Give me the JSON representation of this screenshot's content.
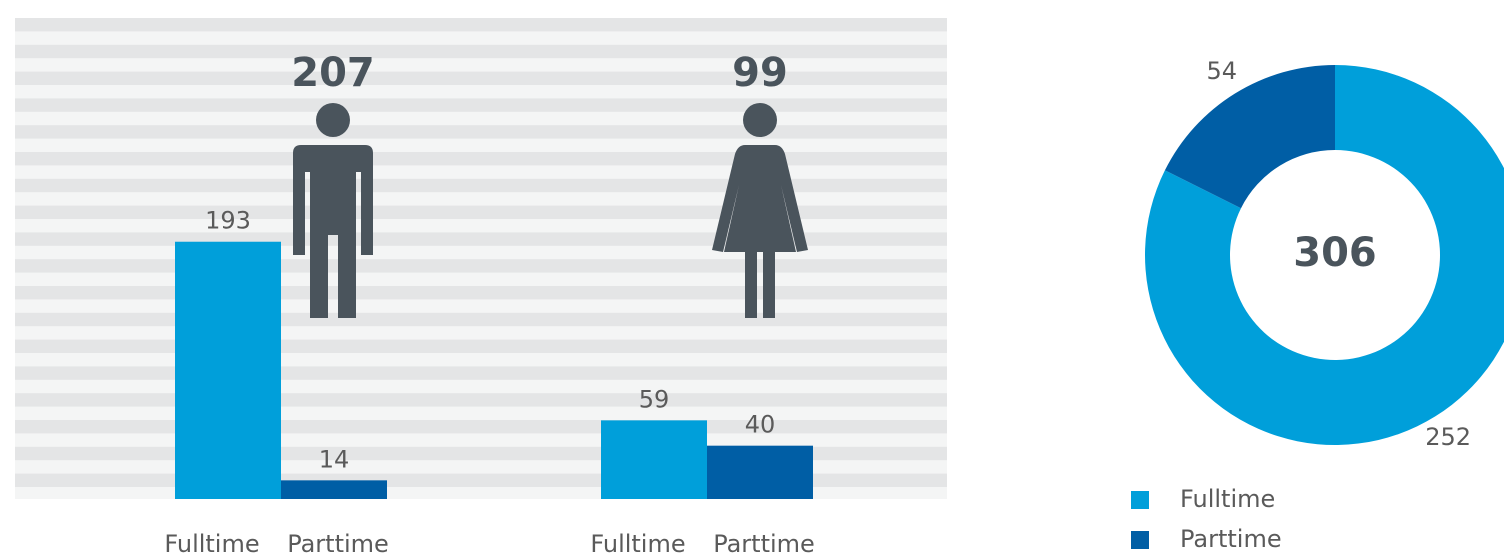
{
  "chart_data": [
    {
      "type": "bar",
      "categories": [
        "Fulltime",
        "Parttime"
      ],
      "colors": [
        "#009fda",
        "#005ea5"
      ],
      "groups": [
        {
          "total": 207,
          "values": [
            193,
            14
          ]
        },
        {
          "total": 99,
          "values": [
            59,
            40
          ]
        }
      ]
    },
    {
      "type": "pie",
      "total": 306,
      "categories": [
        "Fulltime",
        "Parttime"
      ],
      "values": [
        252,
        54
      ],
      "colors": [
        "#009fda",
        "#005ea5"
      ],
      "legend": "bottom-left"
    }
  ]
}
